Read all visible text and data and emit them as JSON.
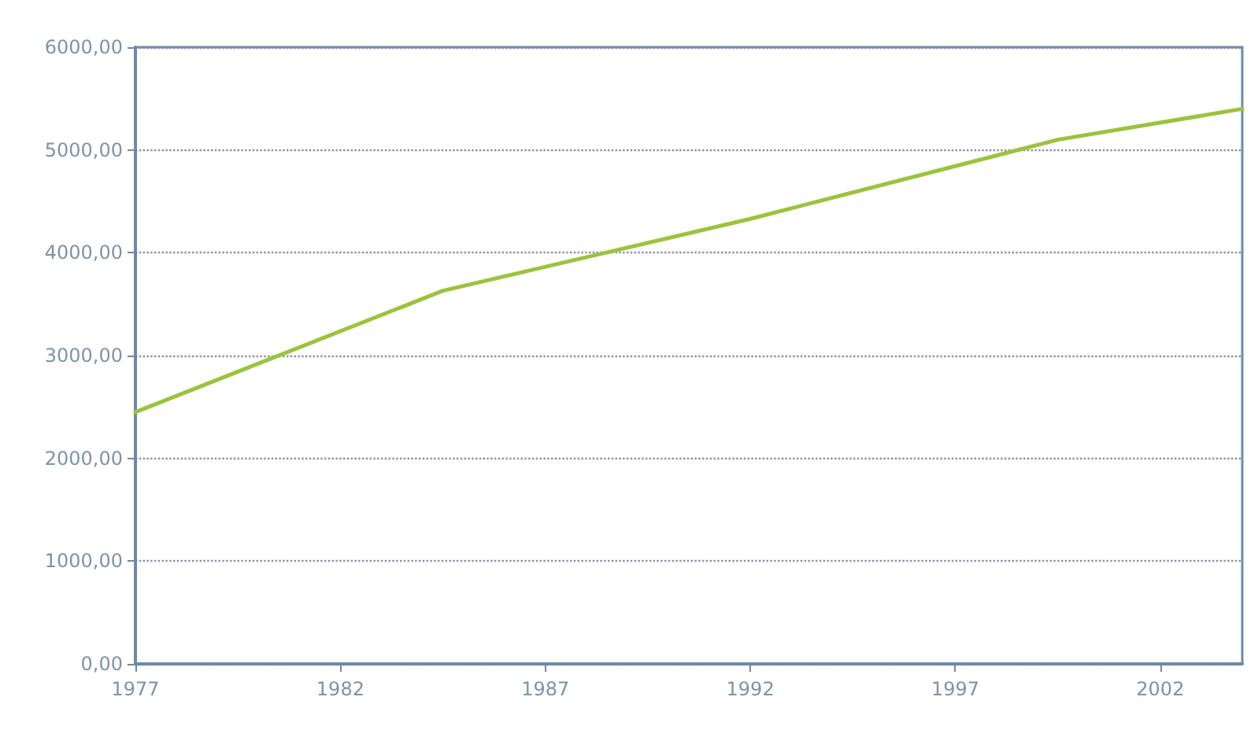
{
  "chart_data": {
    "type": "line",
    "x": [
      1977,
      1984.5,
      1992,
      1999.5,
      2004
    ],
    "series": [
      {
        "color": "#9ac43c",
        "values": [
          2450,
          3630,
          4330,
          5100,
          5400
        ]
      }
    ],
    "xlim": [
      1977,
      2004
    ],
    "xticks": [
      1977,
      1982,
      1987,
      1992,
      1997,
      2002
    ],
    "ylim": [
      0,
      6000
    ],
    "yticks": [
      {
        "value": 0,
        "label": "0,00"
      },
      {
        "value": 1000,
        "label": "1000,00"
      },
      {
        "value": 2000,
        "label": "2000,00"
      },
      {
        "value": 3000,
        "label": "3000,00"
      },
      {
        "value": 4000,
        "label": "4000,00"
      },
      {
        "value": 5000,
        "label": "5000,00"
      },
      {
        "value": 6000,
        "label": "6000,00"
      }
    ],
    "grid": "y",
    "marker": "none",
    "line_style": "solid"
  }
}
